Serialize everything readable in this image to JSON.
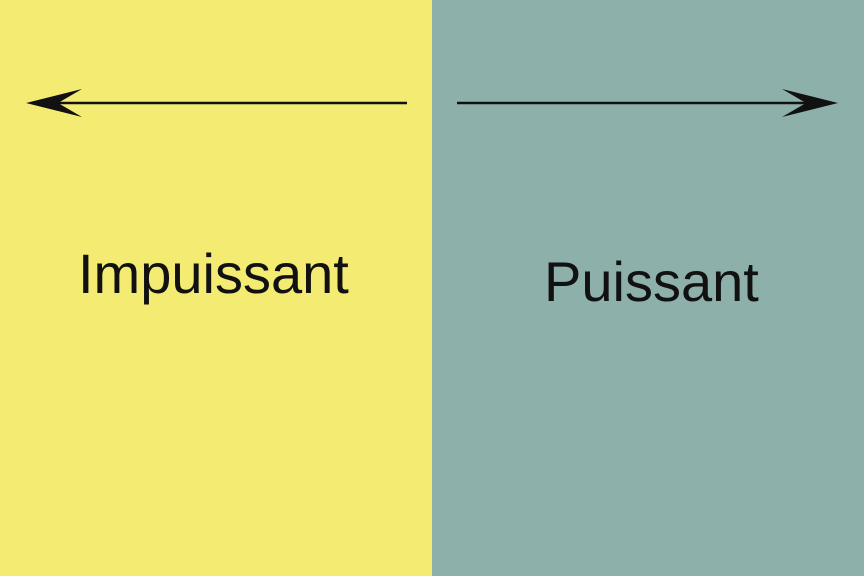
{
  "colors": {
    "left_background": "#f3eb72",
    "right_background": "#8db0aa",
    "ink": "#111111"
  },
  "left": {
    "label": "Impuissant",
    "arrow_direction": "left"
  },
  "right": {
    "label": "Puissant",
    "arrow_direction": "right"
  }
}
